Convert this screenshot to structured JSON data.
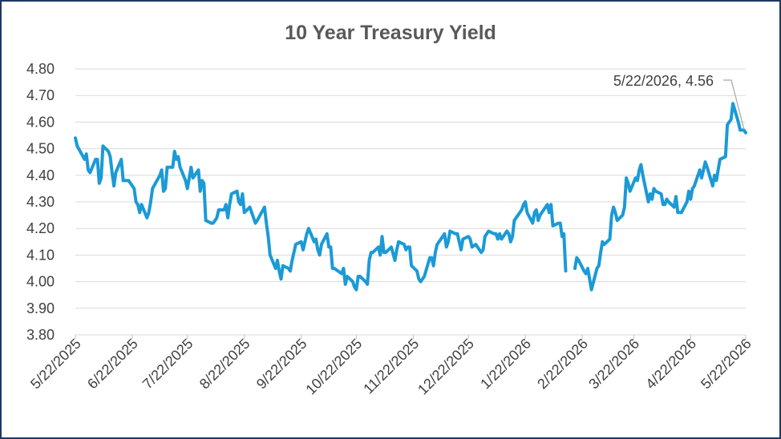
{
  "chart_data": {
    "type": "line",
    "title": "10 Year Treasury Yield",
    "xlabel": "",
    "ylabel": "",
    "ylim": [
      3.8,
      4.8
    ],
    "yticks": [
      "3.80",
      "3.90",
      "4.00",
      "4.10",
      "4.20",
      "4.30",
      "4.40",
      "4.50",
      "4.60",
      "4.70",
      "4.80"
    ],
    "xticks": [
      "5/22/2025",
      "6/22/2025",
      "7/22/2025",
      "8/22/2025",
      "9/22/2025",
      "10/22/2025",
      "11/22/2025",
      "12/22/2025",
      "1/22/2026",
      "2/22/2026",
      "3/22/2026",
      "4/22/2026",
      "5/22/2026"
    ],
    "grid": true,
    "legend": "none",
    "color": "#1b9ad6",
    "annotation": {
      "label": "5/22/2026,  4.56",
      "x": "5/22/2026",
      "y": 4.56
    },
    "series": [
      {
        "values": [
          [
            "5/22/2025",
            4.54
          ],
          [
            "5/23/2025",
            4.51
          ],
          [
            "5/27/2025",
            4.46
          ],
          [
            "5/28/2025",
            4.48
          ],
          [
            "5/29/2025",
            4.42
          ],
          [
            "5/30/2025",
            4.41
          ],
          [
            "6/2/2025",
            4.46
          ],
          [
            "6/3/2025",
            4.46
          ],
          [
            "6/4/2025",
            4.37
          ],
          [
            "6/5/2025",
            4.39
          ],
          [
            "6/6/2025",
            4.51
          ],
          [
            "6/9/2025",
            4.49
          ],
          [
            "6/10/2025",
            4.47
          ],
          [
            "6/11/2025",
            4.41
          ],
          [
            "6/12/2025",
            4.36
          ],
          [
            "6/13/2025",
            4.41
          ],
          [
            "6/16/2025",
            4.46
          ],
          [
            "6/17/2025",
            4.38
          ],
          [
            "6/18/2025",
            4.38
          ],
          [
            "6/20/2025",
            4.38
          ],
          [
            "6/23/2025",
            4.35
          ],
          [
            "6/24/2025",
            4.3
          ],
          [
            "6/25/2025",
            4.29
          ],
          [
            "6/26/2025",
            4.26
          ],
          [
            "6/27/2025",
            4.29
          ],
          [
            "6/30/2025",
            4.24
          ],
          [
            "7/1/2025",
            4.26
          ],
          [
            "7/2/2025",
            4.3
          ],
          [
            "7/3/2025",
            4.35
          ],
          [
            "7/7/2025",
            4.4
          ],
          [
            "7/8/2025",
            4.42
          ],
          [
            "7/9/2025",
            4.34
          ],
          [
            "7/10/2025",
            4.35
          ],
          [
            "7/11/2025",
            4.43
          ],
          [
            "7/14/2025",
            4.43
          ],
          [
            "7/15/2025",
            4.49
          ],
          [
            "7/16/2025",
            4.46
          ],
          [
            "7/17/2025",
            4.47
          ],
          [
            "7/18/2025",
            4.43
          ],
          [
            "7/21/2025",
            4.38
          ],
          [
            "7/22/2025",
            4.35
          ],
          [
            "7/23/2025",
            4.39
          ],
          [
            "7/24/2025",
            4.43
          ],
          [
            "7/25/2025",
            4.39
          ],
          [
            "7/28/2025",
            4.42
          ],
          [
            "7/29/2025",
            4.34
          ],
          [
            "7/30/2025",
            4.38
          ],
          [
            "7/31/2025",
            4.37
          ],
          [
            "8/1/2025",
            4.23
          ],
          [
            "8/4/2025",
            4.22
          ],
          [
            "8/5/2025",
            4.22
          ],
          [
            "8/6/2025",
            4.23
          ],
          [
            "8/7/2025",
            4.24
          ],
          [
            "8/8/2025",
            4.27
          ],
          [
            "8/11/2025",
            4.27
          ],
          [
            "8/12/2025",
            4.29
          ],
          [
            "8/13/2025",
            4.24
          ],
          [
            "8/14/2025",
            4.29
          ],
          [
            "8/15/2025",
            4.33
          ],
          [
            "8/18/2025",
            4.34
          ],
          [
            "8/19/2025",
            4.3
          ],
          [
            "8/20/2025",
            4.29
          ],
          [
            "8/21/2025",
            4.33
          ],
          [
            "8/22/2025",
            4.26
          ],
          [
            "8/25/2025",
            4.28
          ],
          [
            "8/26/2025",
            4.26
          ],
          [
            "8/27/2025",
            4.24
          ],
          [
            "8/28/2025",
            4.22
          ],
          [
            "8/29/2025",
            4.23
          ],
          [
            "9/2/2025",
            4.28
          ],
          [
            "9/3/2025",
            4.22
          ],
          [
            "9/4/2025",
            4.17
          ],
          [
            "9/5/2025",
            4.1
          ],
          [
            "9/8/2025",
            4.05
          ],
          [
            "9/9/2025",
            4.08
          ],
          [
            "9/10/2025",
            4.04
          ],
          [
            "9/11/2025",
            4.01
          ],
          [
            "9/12/2025",
            4.06
          ],
          [
            "9/15/2025",
            4.05
          ],
          [
            "9/16/2025",
            4.04
          ],
          [
            "9/17/2025",
            4.08
          ],
          [
            "9/18/2025",
            4.11
          ],
          [
            "9/19/2025",
            4.14
          ],
          [
            "9/22/2025",
            4.15
          ],
          [
            "9/23/2025",
            4.12
          ],
          [
            "9/24/2025",
            4.15
          ],
          [
            "9/25/2025",
            4.18
          ],
          [
            "9/26/2025",
            4.2
          ],
          [
            "9/29/2025",
            4.15
          ],
          [
            "9/30/2025",
            4.16
          ],
          [
            "10/1/2025",
            4.12
          ],
          [
            "10/2/2025",
            4.1
          ],
          [
            "10/3/2025",
            4.14
          ],
          [
            "10/6/2025",
            4.18
          ],
          [
            "10/7/2025",
            4.13
          ],
          [
            "10/8/2025",
            4.13
          ],
          [
            "10/9/2025",
            4.05
          ],
          [
            "10/10/2025",
            4.05
          ],
          [
            "10/14/2025",
            4.03
          ],
          [
            "10/15/2025",
            4.05
          ],
          [
            "10/16/2025",
            3.99
          ],
          [
            "10/17/2025",
            4.02
          ],
          [
            "10/20/2025",
            4.0
          ],
          [
            "10/21/2025",
            3.98
          ],
          [
            "10/22/2025",
            3.97
          ],
          [
            "10/23/2025",
            4.02
          ],
          [
            "10/24/2025",
            4.02
          ],
          [
            "10/27/2025",
            4.0
          ],
          [
            "10/28/2025",
            3.99
          ],
          [
            "10/29/2025",
            4.08
          ],
          [
            "10/30/2025",
            4.11
          ],
          [
            "10/31/2025",
            4.11
          ],
          [
            "11/3/2025",
            4.13
          ],
          [
            "11/4/2025",
            4.1
          ],
          [
            "11/5/2025",
            4.17
          ],
          [
            "11/6/2025",
            4.11
          ],
          [
            "11/7/2025",
            4.11
          ],
          [
            "11/10/2025",
            4.13
          ],
          [
            "11/12/2025",
            4.08
          ],
          [
            "11/13/2025",
            4.12
          ],
          [
            "11/14/2025",
            4.15
          ],
          [
            "11/17/2025",
            4.14
          ],
          [
            "11/18/2025",
            4.12
          ],
          [
            "11/19/2025",
            4.13
          ],
          [
            "11/20/2025",
            4.13
          ],
          [
            "11/21/2025",
            4.06
          ],
          [
            "11/24/2025",
            4.04
          ],
          [
            "11/25/2025",
            4.01
          ],
          [
            "11/26/2025",
            4.0
          ],
          [
            "11/28/2025",
            4.02
          ],
          [
            "12/1/2025",
            4.09
          ],
          [
            "12/2/2025",
            4.09
          ],
          [
            "12/3/2025",
            4.06
          ],
          [
            "12/4/2025",
            4.11
          ],
          [
            "12/5/2025",
            4.14
          ],
          [
            "12/8/2025",
            4.17
          ],
          [
            "12/9/2025",
            4.18
          ],
          [
            "12/10/2025",
            4.13
          ],
          [
            "12/11/2025",
            4.15
          ],
          [
            "12/12/2025",
            4.19
          ],
          [
            "12/15/2025",
            4.18
          ],
          [
            "12/16/2025",
            4.18
          ],
          [
            "12/17/2025",
            4.15
          ],
          [
            "12/18/2025",
            4.12
          ],
          [
            "12/19/2025",
            4.16
          ],
          [
            "12/22/2025",
            4.17
          ],
          [
            "12/23/2025",
            4.16
          ],
          [
            "12/24/2025",
            4.13
          ],
          [
            "12/26/2025",
            4.14
          ],
          [
            "12/29/2025",
            4.11
          ],
          [
            "12/30/2025",
            4.12
          ],
          [
            "12/31/2025",
            4.17
          ],
          [
            "1/2/2026",
            4.19
          ],
          [
            "1/5/2026",
            4.18
          ],
          [
            "1/6/2026",
            4.18
          ],
          [
            "1/7/2026",
            4.16
          ],
          [
            "1/8/2026",
            4.18
          ],
          [
            "1/9/2026",
            4.16
          ],
          [
            "1/12/2026",
            4.19
          ],
          [
            "1/13/2026",
            4.18
          ],
          [
            "1/14/2026",
            4.15
          ],
          [
            "1/15/2026",
            4.17
          ],
          [
            "1/16/2026",
            4.23
          ],
          [
            "1/20/2026",
            4.27
          ],
          [
            "1/21/2026",
            4.29
          ],
          [
            "1/22/2026",
            4.3
          ],
          [
            "1/23/2026",
            4.26
          ],
          [
            "1/26/2026",
            4.22
          ],
          [
            "1/27/2026",
            4.26
          ],
          [
            "1/28/2026",
            4.27
          ],
          [
            "1/29/2026",
            4.23
          ],
          [
            "1/30/2026",
            4.25
          ],
          [
            "2/2/2026",
            4.28
          ],
          [
            "2/3/2026",
            4.29
          ],
          [
            "2/4/2026",
            4.26
          ],
          [
            "2/5/2026",
            4.29
          ],
          [
            "2/6/2026",
            4.21
          ],
          [
            "2/9/2026",
            4.22
          ],
          [
            "2/10/2026",
            4.22
          ],
          [
            "2/11/2026",
            4.17
          ],
          [
            "2/12/2026",
            4.18
          ],
          [
            "2/13/2026",
            4.04
          ],
          [
            "2/17/2026",
            null
          ],
          [
            "2/18/2026",
            4.05
          ],
          [
            "2/19/2026",
            4.09
          ],
          [
            "2/20/2026",
            4.08
          ],
          [
            "2/23/2026",
            4.04
          ],
          [
            "2/24/2026",
            4.03
          ],
          [
            "2/25/2026",
            4.05
          ],
          [
            "2/26/2026",
            4.01
          ],
          [
            "2/27/2026",
            3.97
          ],
          [
            "3/2/2026",
            4.05
          ],
          [
            "3/3/2026",
            4.06
          ],
          [
            "3/4/2026",
            4.11
          ],
          [
            "3/5/2026",
            4.15
          ],
          [
            "3/6/2026",
            4.14
          ],
          [
            "3/9/2026",
            4.16
          ],
          [
            "3/10/2026",
            4.25
          ],
          [
            "3/11/2026",
            4.28
          ],
          [
            "3/12/2026",
            4.26
          ],
          [
            "3/13/2026",
            4.23
          ],
          [
            "3/16/2026",
            4.25
          ],
          [
            "3/17/2026",
            4.28
          ],
          [
            "3/18/2026",
            4.39
          ],
          [
            "3/19/2026",
            4.37
          ],
          [
            "3/20/2026",
            4.34
          ],
          [
            "3/23/2026",
            4.39
          ],
          [
            "3/24/2026",
            4.38
          ],
          [
            "3/25/2026",
            4.42
          ],
          [
            "3/26/2026",
            4.44
          ],
          [
            "3/27/2026",
            4.4
          ],
          [
            "3/30/2026",
            4.3
          ],
          [
            "3/31/2026",
            4.33
          ],
          [
            "4/1/2026",
            4.31
          ],
          [
            "4/2/2026",
            4.35
          ],
          [
            "4/3/2026",
            4.34
          ],
          [
            "4/6/2026",
            4.33
          ],
          [
            "4/7/2026",
            4.29
          ],
          [
            "4/8/2026",
            4.29
          ],
          [
            "4/9/2026",
            4.31
          ],
          [
            "4/10/2026",
            4.3
          ],
          [
            "4/13/2026",
            4.28
          ],
          [
            "4/14/2026",
            4.32
          ],
          [
            "4/15/2026",
            4.26
          ],
          [
            "4/16/2026",
            4.26
          ],
          [
            "4/17/2026",
            4.26
          ],
          [
            "4/20/2026",
            4.3
          ],
          [
            "4/21/2026",
            4.34
          ],
          [
            "4/22/2026",
            4.31
          ],
          [
            "4/23/2026",
            4.35
          ],
          [
            "4/24/2026",
            4.36
          ],
          [
            "4/27/2026",
            4.42
          ],
          [
            "4/28/2026",
            4.39
          ],
          [
            "4/29/2026",
            4.42
          ],
          [
            "4/30/2026",
            4.45
          ],
          [
            "5/1/2026",
            4.43
          ],
          [
            "5/4/2026",
            4.36
          ],
          [
            "5/5/2026",
            4.4
          ],
          [
            "5/6/2026",
            4.38
          ],
          [
            "5/7/2026",
            4.42
          ],
          [
            "5/8/2026",
            4.46
          ],
          [
            "5/11/2026",
            4.47
          ],
          [
            "5/12/2026",
            4.59
          ],
          [
            "5/13/2026",
            4.6
          ],
          [
            "5/14/2026",
            4.61
          ],
          [
            "5/15/2026",
            4.67
          ],
          [
            "5/18/2026",
            4.6
          ],
          [
            "5/19/2026",
            4.57
          ],
          [
            "5/20/2026",
            4.57
          ],
          [
            "5/21/2026",
            4.57
          ],
          [
            "5/22/2026",
            4.56
          ]
        ]
      }
    ]
  }
}
